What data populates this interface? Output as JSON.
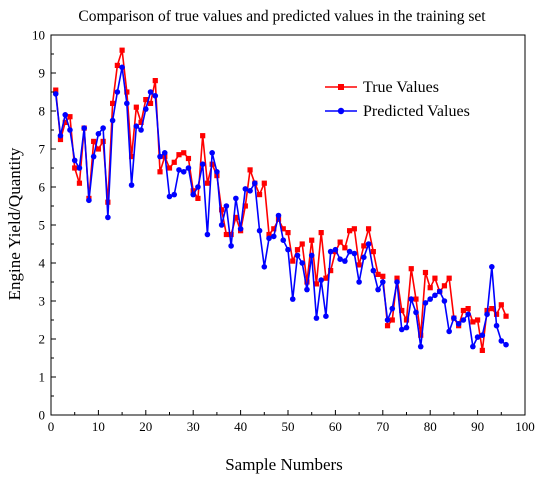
{
  "chart_data": {
    "type": "line",
    "title": "Comparison of true values and predicted values in the training set",
    "xlabel": "Sample Numbers",
    "ylabel": "Engine Yield/Quantity",
    "xlim": [
      0,
      100
    ],
    "ylim": [
      0,
      10
    ],
    "xticks": [
      0,
      10,
      20,
      30,
      40,
      50,
      60,
      70,
      80,
      90,
      100
    ],
    "yticks": [
      0,
      1,
      2,
      3,
      4,
      5,
      6,
      7,
      8,
      9,
      10
    ],
    "grid": false,
    "legend_position": "top-right",
    "x": [
      1,
      2,
      3,
      4,
      5,
      6,
      7,
      8,
      9,
      10,
      11,
      12,
      13,
      14,
      15,
      16,
      17,
      18,
      19,
      20,
      21,
      22,
      23,
      24,
      25,
      26,
      27,
      28,
      29,
      30,
      31,
      32,
      33,
      34,
      35,
      36,
      37,
      38,
      39,
      40,
      41,
      42,
      43,
      44,
      45,
      46,
      47,
      48,
      49,
      50,
      51,
      52,
      53,
      54,
      55,
      56,
      57,
      58,
      59,
      60,
      61,
      62,
      63,
      64,
      65,
      66,
      67,
      68,
      69,
      70,
      71,
      72,
      73,
      74,
      75,
      76,
      77,
      78,
      79,
      80,
      81,
      82,
      83,
      84,
      85,
      86,
      87,
      88,
      89,
      90,
      91,
      92,
      93,
      94,
      95,
      96
    ],
    "series": [
      {
        "name": "True Values",
        "color": "#ff0000",
        "marker": "square",
        "values": [
          8.55,
          7.25,
          7.7,
          7.85,
          6.5,
          6.1,
          7.55,
          5.7,
          7.2,
          7.0,
          7.2,
          5.6,
          8.2,
          9.2,
          9.6,
          8.5,
          6.8,
          8.1,
          7.7,
          8.3,
          8.2,
          8.8,
          6.4,
          6.8,
          6.5,
          6.65,
          6.85,
          6.9,
          6.75,
          5.9,
          5.7,
          7.35,
          6.1,
          6.6,
          6.3,
          5.4,
          4.75,
          4.75,
          5.2,
          4.85,
          5.5,
          6.45,
          6.1,
          5.8,
          6.1,
          4.75,
          4.9,
          5.15,
          4.9,
          4.8,
          4.05,
          4.35,
          4.5,
          3.5,
          4.6,
          3.45,
          4.8,
          3.6,
          3.8,
          4.3,
          4.55,
          4.4,
          4.85,
          4.9,
          3.95,
          4.45,
          4.9,
          4.3,
          3.7,
          3.65,
          2.35,
          2.5,
          3.6,
          2.75,
          2.5,
          3.85,
          3.05,
          2.1,
          3.75,
          3.35,
          3.6,
          3.25,
          3.4,
          3.6,
          2.55,
          2.35,
          2.75,
          2.8,
          2.45,
          2.5,
          1.7,
          2.75,
          2.8,
          2.65,
          2.9,
          2.6
        ]
      },
      {
        "name": "Predicted Values",
        "color": "#0000ff",
        "marker": "circle",
        "values": [
          8.45,
          7.35,
          7.9,
          7.5,
          6.7,
          6.5,
          7.55,
          5.65,
          6.8,
          7.4,
          7.55,
          5.2,
          7.75,
          8.5,
          9.15,
          8.2,
          6.05,
          7.6,
          7.5,
          8.05,
          8.5,
          8.4,
          6.8,
          6.9,
          5.75,
          5.8,
          6.45,
          6.4,
          6.5,
          5.8,
          6.0,
          6.6,
          4.75,
          6.9,
          6.4,
          5.0,
          5.5,
          4.45,
          5.7,
          4.9,
          5.95,
          5.9,
          6.1,
          4.85,
          3.9,
          4.65,
          4.7,
          5.25,
          4.6,
          4.35,
          3.05,
          4.2,
          4.0,
          3.3,
          4.2,
          2.55,
          3.55,
          2.6,
          4.3,
          4.35,
          4.1,
          4.05,
          4.3,
          4.25,
          3.5,
          4.15,
          4.5,
          3.8,
          3.3,
          3.5,
          2.5,
          2.8,
          3.5,
          2.25,
          2.3,
          3.05,
          2.7,
          1.8,
          2.95,
          3.05,
          3.15,
          3.25,
          3.0,
          2.2,
          2.55,
          2.4,
          2.5,
          2.65,
          1.8,
          2.05,
          2.1,
          2.65,
          3.9,
          2.35,
          1.95,
          1.85
        ]
      }
    ]
  }
}
